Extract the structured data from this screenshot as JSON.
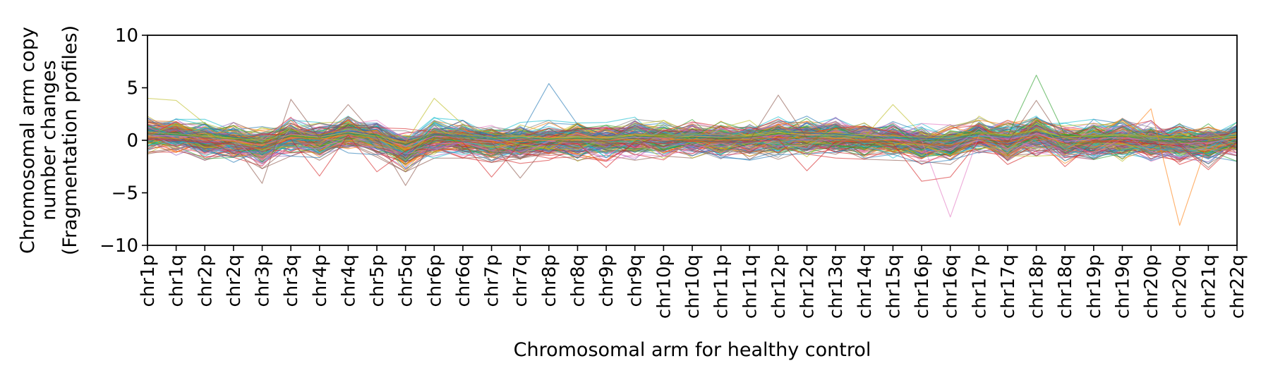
{
  "chart_data": {
    "type": "line",
    "title": "",
    "xlabel": "Chromosomal arm for healthy control",
    "ylabel_lines": [
      "Chromosomal arm copy",
      "number changes",
      "(Fragmentation profiles)"
    ],
    "ylim": [
      -10,
      10
    ],
    "yticks": [
      10,
      5,
      0,
      -5,
      -10
    ],
    "ytick_labels": [
      "10",
      "5",
      "0",
      "−5",
      "−10"
    ],
    "categories": [
      "chr1p",
      "chr1q",
      "chr2p",
      "chr2q",
      "chr3p",
      "chr3q",
      "chr4p",
      "chr4q",
      "chr5p",
      "chr5q",
      "chr6p",
      "chr6q",
      "chr7p",
      "chr7q",
      "chr8p",
      "chr8q",
      "chr9p",
      "chr9q",
      "chr10p",
      "chr10q",
      "chr11p",
      "chr11q",
      "chr12p",
      "chr12q",
      "chr13q",
      "chr14q",
      "chr15q",
      "chr16p",
      "chr16q",
      "chr17p",
      "chr17q",
      "chr18p",
      "chr18q",
      "chr19p",
      "chr19q",
      "chr20p",
      "chr20q",
      "chr21q",
      "chr22q"
    ],
    "grid": false,
    "legend": "none",
    "series_count": 220,
    "series_note": "Many overlapping per-sample profiles; values mostly within [-2.5, 2.5]",
    "palette": [
      "#1f77b4",
      "#ff7f0e",
      "#2ca02c",
      "#d62728",
      "#9467bd",
      "#8c564b",
      "#e377c2",
      "#7f7f7f",
      "#bcbd22",
      "#17becf"
    ],
    "band": {
      "upper": [
        1.6,
        1.8,
        1.3,
        1.0,
        0.6,
        1.5,
        1.0,
        1.8,
        1.3,
        0.4,
        1.5,
        1.2,
        1.0,
        1.0,
        1.2,
        1.5,
        1.0,
        1.5,
        1.2,
        1.3,
        1.2,
        1.2,
        1.6,
        1.6,
        1.6,
        1.3,
        1.2,
        0.9,
        0.8,
        1.6,
        1.2,
        2.0,
        1.0,
        1.3,
        1.5,
        1.2,
        0.9,
        1.0,
        1.4
      ],
      "lower": [
        -0.6,
        -0.8,
        -1.2,
        -1.4,
        -2.0,
        -0.8,
        -1.2,
        -0.5,
        -1.0,
        -2.3,
        -1.0,
        -1.0,
        -1.4,
        -1.5,
        -1.2,
        -1.3,
        -1.3,
        -1.2,
        -1.2,
        -1.0,
        -1.2,
        -1.2,
        -1.2,
        -1.0,
        -1.0,
        -1.1,
        -1.2,
        -1.6,
        -1.6,
        -0.8,
        -1.6,
        -0.8,
        -1.5,
        -1.4,
        -1.3,
        -1.5,
        -1.6,
        -1.6,
        -1.3
      ]
    },
    "highlights": [
      {
        "values": [
          1.0,
          0.5,
          0.8,
          0.3,
          0.0,
          0.6,
          0.4,
          0.9,
          0.5,
          0.0,
          0.6,
          0.4,
          0.3,
          0.5,
          5.4,
          1.5,
          0.4,
          0.6,
          0.5,
          0.5,
          0.4,
          0.3,
          0.9,
          0.7,
          0.6,
          0.4,
          0.3,
          0.2,
          0.1,
          0.8,
          0.3,
          0.9,
          0.2,
          0.5,
          0.6,
          0.3,
          0.1,
          0.2,
          0.5
        ],
        "color": "#1f77b4"
      },
      {
        "values": [
          0.5,
          0.4,
          0.3,
          0.0,
          -0.5,
          0.6,
          0.3,
          0.8,
          0.3,
          -0.6,
          0.4,
          0.3,
          0.0,
          0.2,
          0.0,
          0.3,
          0.2,
          0.3,
          0.2,
          0.4,
          0.3,
          0.2,
          0.5,
          0.5,
          0.4,
          0.2,
          0.1,
          0.0,
          -7.3,
          0.5,
          0.1,
          0.6,
          -0.1,
          0.1,
          0.3,
          0.0,
          -0.3,
          -0.2,
          0.2
        ],
        "color": "#e377c2"
      },
      {
        "values": [
          0.3,
          0.2,
          0.1,
          -0.1,
          -0.5,
          0.3,
          0.1,
          0.5,
          0.1,
          -0.8,
          0.2,
          0.1,
          -0.2,
          -0.1,
          0.0,
          0.1,
          0.0,
          0.1,
          0.0,
          0.1,
          0.0,
          0.1,
          0.3,
          0.2,
          0.2,
          0.0,
          0.0,
          -0.4,
          -0.5,
          0.3,
          -0.2,
          0.5,
          -0.3,
          -0.1,
          0.0,
          3.0,
          -8.1,
          0.0,
          0.2
        ],
        "color": "#ff7f0e"
      },
      {
        "values": [
          0.6,
          0.5,
          0.3,
          0.1,
          -0.3,
          0.4,
          0.2,
          0.7,
          0.3,
          -0.4,
          0.5,
          0.3,
          0.1,
          0.2,
          0.1,
          0.2,
          0.1,
          0.4,
          0.3,
          0.3,
          0.2,
          0.3,
          0.6,
          0.4,
          0.4,
          0.2,
          0.2,
          0.0,
          0.0,
          0.7,
          0.4,
          6.2,
          0.5,
          0.3,
          0.4,
          0.0,
          -0.2,
          -0.1,
          0.3
        ],
        "color": "#2ca02c"
      },
      {
        "values": [
          4.0,
          3.8,
          1.6,
          0.8,
          -0.2,
          1.0,
          0.5,
          1.1,
          0.6,
          -0.3,
          0.8,
          0.6,
          0.3,
          0.4,
          0.2,
          0.4,
          0.3,
          0.6,
          0.5,
          0.6,
          0.5,
          0.5,
          0.9,
          0.8,
          0.7,
          0.5,
          0.4,
          0.3,
          0.2,
          0.8,
          0.5,
          1.0,
          0.3,
          0.5,
          0.6,
          0.4,
          0.3,
          0.2,
          0.6
        ],
        "color": "#bcbd22"
      },
      {
        "values": [
          0.8,
          0.6,
          0.4,
          0.2,
          0.0,
          0.5,
          0.3,
          0.8,
          0.4,
          -0.2,
          4.0,
          1.5,
          0.6,
          0.4,
          0.2,
          0.3,
          0.2,
          0.5,
          0.4,
          0.4,
          0.3,
          0.4,
          0.7,
          0.6,
          0.5,
          0.3,
          3.4,
          0.6,
          0.4,
          0.7,
          0.4,
          0.9,
          0.3,
          0.4,
          0.5,
          0.3,
          0.2,
          0.2,
          0.4
        ],
        "color": "#bcbd22"
      },
      {
        "values": [
          0.2,
          0.1,
          -0.1,
          -0.3,
          -4.1,
          3.9,
          0.2,
          3.4,
          0.3,
          -4.3,
          0.2,
          0.1,
          -0.2,
          -3.6,
          -0.2,
          -0.1,
          -0.1,
          0.2,
          -0.1,
          0.0,
          -0.1,
          0.0,
          4.3,
          0.2,
          0.1,
          -0.1,
          -0.1,
          -0.3,
          -0.5,
          0.1,
          -0.2,
          3.8,
          -0.3,
          -0.1,
          0.1,
          -0.1,
          -0.3,
          -2.6,
          -0.1
        ],
        "color": "#8c564b"
      },
      {
        "values": [
          0.1,
          0.0,
          -0.2,
          -0.4,
          -0.8,
          0.1,
          -3.4,
          0.5,
          -3.0,
          -1.0,
          0.0,
          -0.2,
          -3.5,
          -0.3,
          -0.4,
          -0.3,
          -2.6,
          -0.1,
          -0.3,
          -0.1,
          -0.2,
          -0.2,
          0.1,
          -2.9,
          -0.1,
          -0.2,
          -0.3,
          -3.9,
          -3.5,
          -0.1,
          -0.4,
          0.3,
          -2.5,
          -0.2,
          -0.1,
          -0.3,
          -0.5,
          -2.8,
          -0.2
        ],
        "color": "#d62728"
      }
    ]
  }
}
